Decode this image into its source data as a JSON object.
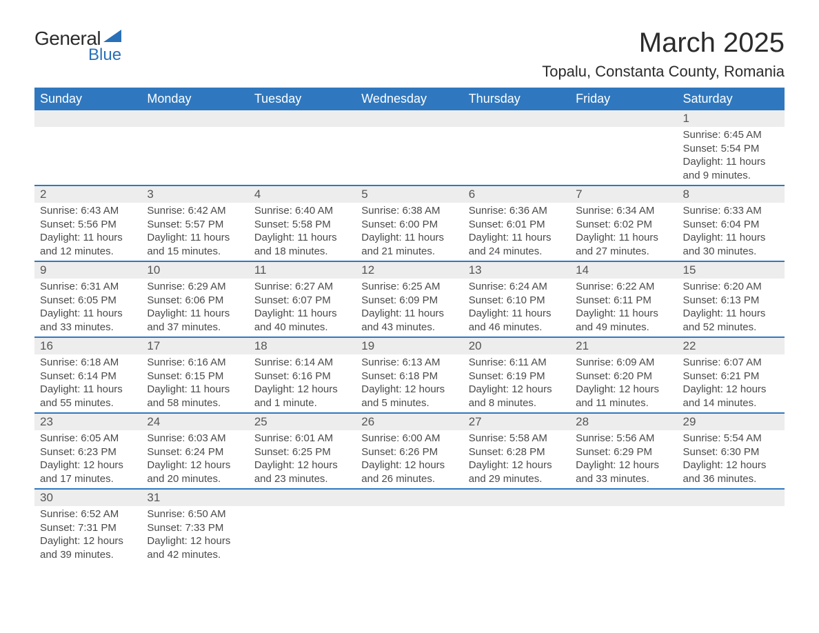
{
  "logo": {
    "text1": "General",
    "text2": "Blue",
    "shape_color": "#2970b8"
  },
  "title": "March 2025",
  "location": "Topalu, Constanta County, Romania",
  "colors": {
    "header_bg": "#2f78bf",
    "header_text": "#ffffff",
    "band_bg": "#ededed",
    "border": "#2f78bf",
    "body_text": "#4a4a4a",
    "daynum_text": "#555555",
    "page_bg": "#ffffff"
  },
  "weekdays": [
    "Sunday",
    "Monday",
    "Tuesday",
    "Wednesday",
    "Thursday",
    "Friday",
    "Saturday"
  ],
  "weeks": [
    [
      {
        "n": "",
        "sunrise": "",
        "sunset": "",
        "daylight": ""
      },
      {
        "n": "",
        "sunrise": "",
        "sunset": "",
        "daylight": ""
      },
      {
        "n": "",
        "sunrise": "",
        "sunset": "",
        "daylight": ""
      },
      {
        "n": "",
        "sunrise": "",
        "sunset": "",
        "daylight": ""
      },
      {
        "n": "",
        "sunrise": "",
        "sunset": "",
        "daylight": ""
      },
      {
        "n": "",
        "sunrise": "",
        "sunset": "",
        "daylight": ""
      },
      {
        "n": "1",
        "sunrise": "Sunrise: 6:45 AM",
        "sunset": "Sunset: 5:54 PM",
        "daylight": "Daylight: 11 hours and 9 minutes."
      }
    ],
    [
      {
        "n": "2",
        "sunrise": "Sunrise: 6:43 AM",
        "sunset": "Sunset: 5:56 PM",
        "daylight": "Daylight: 11 hours and 12 minutes."
      },
      {
        "n": "3",
        "sunrise": "Sunrise: 6:42 AM",
        "sunset": "Sunset: 5:57 PM",
        "daylight": "Daylight: 11 hours and 15 minutes."
      },
      {
        "n": "4",
        "sunrise": "Sunrise: 6:40 AM",
        "sunset": "Sunset: 5:58 PM",
        "daylight": "Daylight: 11 hours and 18 minutes."
      },
      {
        "n": "5",
        "sunrise": "Sunrise: 6:38 AM",
        "sunset": "Sunset: 6:00 PM",
        "daylight": "Daylight: 11 hours and 21 minutes."
      },
      {
        "n": "6",
        "sunrise": "Sunrise: 6:36 AM",
        "sunset": "Sunset: 6:01 PM",
        "daylight": "Daylight: 11 hours and 24 minutes."
      },
      {
        "n": "7",
        "sunrise": "Sunrise: 6:34 AM",
        "sunset": "Sunset: 6:02 PM",
        "daylight": "Daylight: 11 hours and 27 minutes."
      },
      {
        "n": "8",
        "sunrise": "Sunrise: 6:33 AM",
        "sunset": "Sunset: 6:04 PM",
        "daylight": "Daylight: 11 hours and 30 minutes."
      }
    ],
    [
      {
        "n": "9",
        "sunrise": "Sunrise: 6:31 AM",
        "sunset": "Sunset: 6:05 PM",
        "daylight": "Daylight: 11 hours and 33 minutes."
      },
      {
        "n": "10",
        "sunrise": "Sunrise: 6:29 AM",
        "sunset": "Sunset: 6:06 PM",
        "daylight": "Daylight: 11 hours and 37 minutes."
      },
      {
        "n": "11",
        "sunrise": "Sunrise: 6:27 AM",
        "sunset": "Sunset: 6:07 PM",
        "daylight": "Daylight: 11 hours and 40 minutes."
      },
      {
        "n": "12",
        "sunrise": "Sunrise: 6:25 AM",
        "sunset": "Sunset: 6:09 PM",
        "daylight": "Daylight: 11 hours and 43 minutes."
      },
      {
        "n": "13",
        "sunrise": "Sunrise: 6:24 AM",
        "sunset": "Sunset: 6:10 PM",
        "daylight": "Daylight: 11 hours and 46 minutes."
      },
      {
        "n": "14",
        "sunrise": "Sunrise: 6:22 AM",
        "sunset": "Sunset: 6:11 PM",
        "daylight": "Daylight: 11 hours and 49 minutes."
      },
      {
        "n": "15",
        "sunrise": "Sunrise: 6:20 AM",
        "sunset": "Sunset: 6:13 PM",
        "daylight": "Daylight: 11 hours and 52 minutes."
      }
    ],
    [
      {
        "n": "16",
        "sunrise": "Sunrise: 6:18 AM",
        "sunset": "Sunset: 6:14 PM",
        "daylight": "Daylight: 11 hours and 55 minutes."
      },
      {
        "n": "17",
        "sunrise": "Sunrise: 6:16 AM",
        "sunset": "Sunset: 6:15 PM",
        "daylight": "Daylight: 11 hours and 58 minutes."
      },
      {
        "n": "18",
        "sunrise": "Sunrise: 6:14 AM",
        "sunset": "Sunset: 6:16 PM",
        "daylight": "Daylight: 12 hours and 1 minute."
      },
      {
        "n": "19",
        "sunrise": "Sunrise: 6:13 AM",
        "sunset": "Sunset: 6:18 PM",
        "daylight": "Daylight: 12 hours and 5 minutes."
      },
      {
        "n": "20",
        "sunrise": "Sunrise: 6:11 AM",
        "sunset": "Sunset: 6:19 PM",
        "daylight": "Daylight: 12 hours and 8 minutes."
      },
      {
        "n": "21",
        "sunrise": "Sunrise: 6:09 AM",
        "sunset": "Sunset: 6:20 PM",
        "daylight": "Daylight: 12 hours and 11 minutes."
      },
      {
        "n": "22",
        "sunrise": "Sunrise: 6:07 AM",
        "sunset": "Sunset: 6:21 PM",
        "daylight": "Daylight: 12 hours and 14 minutes."
      }
    ],
    [
      {
        "n": "23",
        "sunrise": "Sunrise: 6:05 AM",
        "sunset": "Sunset: 6:23 PM",
        "daylight": "Daylight: 12 hours and 17 minutes."
      },
      {
        "n": "24",
        "sunrise": "Sunrise: 6:03 AM",
        "sunset": "Sunset: 6:24 PM",
        "daylight": "Daylight: 12 hours and 20 minutes."
      },
      {
        "n": "25",
        "sunrise": "Sunrise: 6:01 AM",
        "sunset": "Sunset: 6:25 PM",
        "daylight": "Daylight: 12 hours and 23 minutes."
      },
      {
        "n": "26",
        "sunrise": "Sunrise: 6:00 AM",
        "sunset": "Sunset: 6:26 PM",
        "daylight": "Daylight: 12 hours and 26 minutes."
      },
      {
        "n": "27",
        "sunrise": "Sunrise: 5:58 AM",
        "sunset": "Sunset: 6:28 PM",
        "daylight": "Daylight: 12 hours and 29 minutes."
      },
      {
        "n": "28",
        "sunrise": "Sunrise: 5:56 AM",
        "sunset": "Sunset: 6:29 PM",
        "daylight": "Daylight: 12 hours and 33 minutes."
      },
      {
        "n": "29",
        "sunrise": "Sunrise: 5:54 AM",
        "sunset": "Sunset: 6:30 PM",
        "daylight": "Daylight: 12 hours and 36 minutes."
      }
    ],
    [
      {
        "n": "30",
        "sunrise": "Sunrise: 6:52 AM",
        "sunset": "Sunset: 7:31 PM",
        "daylight": "Daylight: 12 hours and 39 minutes."
      },
      {
        "n": "31",
        "sunrise": "Sunrise: 6:50 AM",
        "sunset": "Sunset: 7:33 PM",
        "daylight": "Daylight: 12 hours and 42 minutes."
      },
      {
        "n": "",
        "sunrise": "",
        "sunset": "",
        "daylight": ""
      },
      {
        "n": "",
        "sunrise": "",
        "sunset": "",
        "daylight": ""
      },
      {
        "n": "",
        "sunrise": "",
        "sunset": "",
        "daylight": ""
      },
      {
        "n": "",
        "sunrise": "",
        "sunset": "",
        "daylight": ""
      },
      {
        "n": "",
        "sunrise": "",
        "sunset": "",
        "daylight": ""
      }
    ]
  ]
}
